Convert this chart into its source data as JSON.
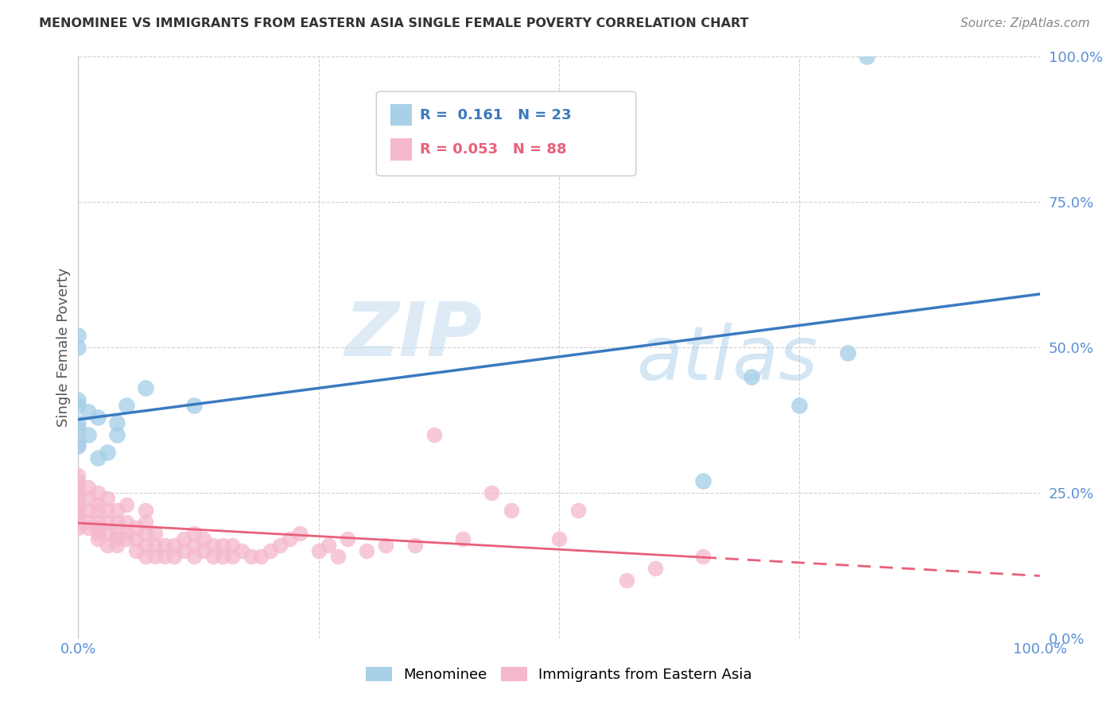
{
  "title": "MENOMINEE VS IMMIGRANTS FROM EASTERN ASIA SINGLE FEMALE POVERTY CORRELATION CHART",
  "source": "Source: ZipAtlas.com",
  "ylabel": "Single Female Poverty",
  "xlim": [
    0,
    1
  ],
  "ylim": [
    0,
    1
  ],
  "xticks": [
    0,
    0.25,
    0.5,
    0.75,
    1.0
  ],
  "yticks": [
    0,
    0.25,
    0.5,
    0.75,
    1.0
  ],
  "xticklabels": [
    "0.0%",
    "",
    "",
    "",
    "100.0%"
  ],
  "yticklabels": [
    "0.0%",
    "25.0%",
    "50.0%",
    "75.0%",
    "100.0%"
  ],
  "watermark_zip": "ZIP",
  "watermark_atlas": "atlas",
  "legend_text1": "R =  0.161   N = 23",
  "legend_text2": "R = 0.053   N = 88",
  "blue_scatter_color": "#a8d0e8",
  "pink_scatter_color": "#f5b8cb",
  "blue_line_color": "#3a7abf",
  "pink_line_color": "#e8607a",
  "tick_label_color": "#5b8fd4",
  "menominee_x": [
    0.0,
    0.0,
    0.0,
    0.0,
    0.0,
    0.0,
    0.0,
    0.0,
    0.01,
    0.01,
    0.02,
    0.02,
    0.03,
    0.04,
    0.04,
    0.05,
    0.07,
    0.12,
    0.65,
    0.7,
    0.75,
    0.8,
    0.82
  ],
  "menominee_y": [
    0.33,
    0.34,
    0.36,
    0.37,
    0.4,
    0.41,
    0.5,
    0.52,
    0.35,
    0.39,
    0.31,
    0.38,
    0.32,
    0.35,
    0.37,
    0.4,
    0.43,
    0.4,
    0.27,
    0.45,
    0.4,
    0.49,
    1.0
  ],
  "eastern_asia_x": [
    0.0,
    0.0,
    0.0,
    0.0,
    0.0,
    0.0,
    0.0,
    0.0,
    0.0,
    0.0,
    0.0,
    0.01,
    0.01,
    0.01,
    0.01,
    0.01,
    0.02,
    0.02,
    0.02,
    0.02,
    0.02,
    0.02,
    0.02,
    0.03,
    0.03,
    0.03,
    0.03,
    0.03,
    0.04,
    0.04,
    0.04,
    0.04,
    0.04,
    0.05,
    0.05,
    0.05,
    0.05,
    0.06,
    0.06,
    0.06,
    0.07,
    0.07,
    0.07,
    0.07,
    0.07,
    0.08,
    0.08,
    0.08,
    0.09,
    0.09,
    0.1,
    0.1,
    0.11,
    0.11,
    0.12,
    0.12,
    0.12,
    0.13,
    0.13,
    0.14,
    0.14,
    0.15,
    0.15,
    0.16,
    0.16,
    0.17,
    0.18,
    0.19,
    0.2,
    0.21,
    0.22,
    0.23,
    0.25,
    0.26,
    0.27,
    0.28,
    0.3,
    0.32,
    0.35,
    0.37,
    0.4,
    0.43,
    0.45,
    0.5,
    0.52,
    0.57,
    0.6,
    0.65
  ],
  "eastern_asia_y": [
    0.19,
    0.2,
    0.21,
    0.22,
    0.23,
    0.24,
    0.25,
    0.26,
    0.27,
    0.28,
    0.33,
    0.19,
    0.2,
    0.22,
    0.24,
    0.26,
    0.17,
    0.18,
    0.19,
    0.2,
    0.22,
    0.23,
    0.25,
    0.16,
    0.18,
    0.2,
    0.22,
    0.24,
    0.16,
    0.17,
    0.18,
    0.2,
    0.22,
    0.17,
    0.18,
    0.2,
    0.23,
    0.15,
    0.17,
    0.19,
    0.14,
    0.16,
    0.18,
    0.2,
    0.22,
    0.14,
    0.16,
    0.18,
    0.14,
    0.16,
    0.14,
    0.16,
    0.15,
    0.17,
    0.14,
    0.16,
    0.18,
    0.15,
    0.17,
    0.14,
    0.16,
    0.14,
    0.16,
    0.14,
    0.16,
    0.15,
    0.14,
    0.14,
    0.15,
    0.16,
    0.17,
    0.18,
    0.15,
    0.16,
    0.14,
    0.17,
    0.15,
    0.16,
    0.16,
    0.35,
    0.17,
    0.25,
    0.22,
    0.17,
    0.22,
    0.1,
    0.12,
    0.14
  ]
}
